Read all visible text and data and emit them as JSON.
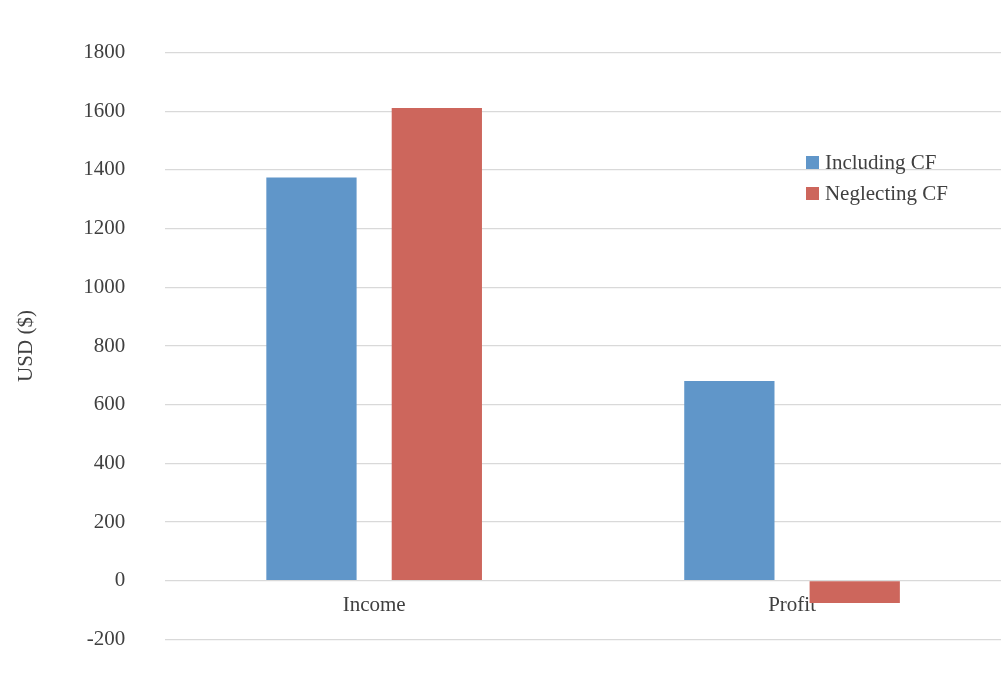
{
  "chart_data": {
    "type": "bar",
    "ylabel": "USD ($)",
    "categories": [
      "Income",
      "Profit"
    ],
    "series": [
      {
        "name": "Including CF",
        "color": "#6096c9",
        "values": [
          1374,
          681
        ]
      },
      {
        "name": "Neglecting CF",
        "color": "#cd665c",
        "values": [
          1611,
          -76
        ]
      }
    ],
    "ylim": [
      -200,
      1800
    ],
    "yticks": [
      -200,
      0,
      200,
      400,
      600,
      800,
      1000,
      1200,
      1400,
      1600,
      1800
    ],
    "grid": "y",
    "legend": "top right"
  }
}
